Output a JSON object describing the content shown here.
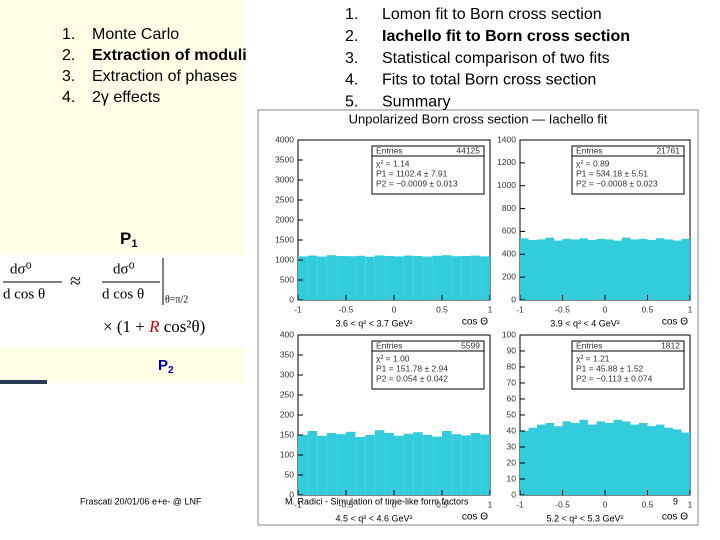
{
  "left_list": [
    {
      "num": "1.",
      "text": "Monte Carlo",
      "bold": false
    },
    {
      "num": "2.",
      "text": "Extraction of moduli",
      "bold": true
    },
    {
      "num": "3.",
      "text": "Extraction of phases",
      "bold": false
    },
    {
      "num": "4.",
      "text": "2γ effects",
      "bold": false
    }
  ],
  "right_list": [
    {
      "num": "1.",
      "text": "Lomon fit to Born cross section",
      "bold": false
    },
    {
      "num": "2.",
      "text": "Iachello fit to Born cross section",
      "bold": true
    },
    {
      "num": "3.",
      "text": "Statistical comparison of two fits",
      "bold": false
    },
    {
      "num": "4.",
      "text": "Fits to total Born cross section",
      "bold": false
    },
    {
      "num": "5.",
      "text": "Summary",
      "bold": false
    }
  ],
  "labels": {
    "p1": "P",
    "p1_sub": "1",
    "p2": "P",
    "p2_sub": "2"
  },
  "formula": {
    "num": "dσ⁰",
    "den": "d cos θ",
    "approx": "≈",
    "num2": "dσ⁰",
    "den2": "d cos θ",
    "at": "θ=π/2",
    "times": "× (1 + ",
    "r": "R",
    "tail": " cos²θ)"
  },
  "figure": {
    "title": "Unpolarized Born cross section — Iachello fit",
    "xlabel": "cos Θ",
    "panels": [
      {
        "type": "histogram",
        "stats_title": "Entries",
        "entries": "44125",
        "chi2": "χ² = 1.14",
        "p1": "P1 = 1102.4 ± 7.91",
        "p2": "P2 = −0.0009 ± 0.013",
        "caption": "3.6 < q² < 3.7 GeV²",
        "color": "#33ccdd",
        "bins": [
          -1,
          -0.9,
          -0.8,
          -0.7,
          -0.6,
          -0.5,
          -0.4,
          -0.3,
          -0.2,
          -0.1,
          0,
          0.1,
          0.2,
          0.3,
          0.4,
          0.5,
          0.6,
          0.7,
          0.8,
          0.9,
          1
        ],
        "counts": [
          1090,
          1110,
          1085,
          1120,
          1100,
          1095,
          1105,
          1080,
          1115,
          1100,
          1090,
          1110,
          1100,
          1085,
          1105,
          1120,
          1095,
          1100,
          1110,
          1090
        ],
        "xlim": [
          -1,
          1
        ],
        "xticks": [
          -1,
          -0.5,
          0,
          0.5,
          1
        ],
        "ylim": [
          0,
          4000
        ],
        "yticks": [
          0,
          500,
          1000,
          1500,
          2000,
          2500,
          3000,
          3500,
          4000
        ]
      },
      {
        "type": "histogram",
        "stats_title": "Entries",
        "entries": "21761",
        "chi2": "χ² = 0.89",
        "p1": "P1 = 534.18 ± 5.51",
        "p2": "P2 = −0.0008 ± 0.023",
        "caption": "3.9 < q² < 4 GeV²",
        "color": "#33ccdd",
        "bins": [
          -1,
          -0.9,
          -0.8,
          -0.7,
          -0.6,
          -0.5,
          -0.4,
          -0.3,
          -0.2,
          -0.1,
          0,
          0.1,
          0.2,
          0.3,
          0.4,
          0.5,
          0.6,
          0.7,
          0.8,
          0.9,
          1
        ],
        "counts": [
          540,
          525,
          530,
          545,
          520,
          535,
          530,
          540,
          525,
          535,
          530,
          520,
          545,
          530,
          535,
          525,
          540,
          530,
          520,
          535
        ],
        "xlim": [
          -1,
          1
        ],
        "xticks": [
          -1,
          -0.5,
          0,
          0.5,
          1
        ],
        "ylim": [
          0,
          1400
        ],
        "yticks": [
          0,
          200,
          400,
          600,
          800,
          1000,
          1200,
          1400
        ]
      },
      {
        "type": "histogram",
        "stats_title": "Entries",
        "entries": "5599",
        "chi2": "χ² = 1.00",
        "p1": "P1 = 151.78 ± 2.94",
        "p2": "P2 = 0.054 ± 0.042",
        "caption": "4.5 < q² < 4.6 GeV²",
        "color": "#33ccdd",
        "bins": [
          -1,
          -0.9,
          -0.8,
          -0.7,
          -0.6,
          -0.5,
          -0.4,
          -0.3,
          -0.2,
          -0.1,
          0,
          0.1,
          0.2,
          0.3,
          0.4,
          0.5,
          0.6,
          0.7,
          0.8,
          0.9,
          1
        ],
        "counts": [
          150,
          160,
          148,
          155,
          152,
          158,
          145,
          150,
          162,
          155,
          148,
          153,
          157,
          150,
          146,
          160,
          152,
          149,
          155,
          151
        ],
        "xlim": [
          -1,
          1
        ],
        "xticks": [
          -1,
          -0.5,
          0,
          0.5,
          1
        ],
        "ylim": [
          0,
          400
        ],
        "yticks": [
          0,
          50,
          100,
          150,
          200,
          250,
          300,
          350,
          400
        ]
      },
      {
        "type": "histogram",
        "stats_title": "Entries",
        "entries": "1812",
        "chi2": "χ² = 1.21",
        "p1": "P1 = 45.88 ± 1.52",
        "p2": "P2 = −0.113 ± 0.074",
        "caption": "5.2 < q² < 5.3 GeV²",
        "color": "#33ccdd",
        "bins": [
          -1,
          -0.9,
          -0.8,
          -0.7,
          -0.6,
          -0.5,
          -0.4,
          -0.3,
          -0.2,
          -0.1,
          0,
          0.1,
          0.2,
          0.3,
          0.4,
          0.5,
          0.6,
          0.7,
          0.8,
          0.9,
          1
        ],
        "counts": [
          40,
          42,
          44,
          45,
          43,
          46,
          45,
          47,
          44,
          46,
          45,
          47,
          46,
          44,
          45,
          43,
          44,
          42,
          41,
          39
        ],
        "xlim": [
          -1,
          1
        ],
        "xticks": [
          -1,
          -0.5,
          0,
          0.5,
          1
        ],
        "ylim": [
          0,
          100
        ],
        "yticks": [
          0,
          10,
          20,
          30,
          40,
          50,
          60,
          70,
          80,
          90,
          100
        ]
      }
    ]
  },
  "footer": {
    "left": "Frascati 20/01/06 e+e- @ LNF",
    "center": "M. Radici - Simulation of time-like form factors",
    "page": "9"
  }
}
